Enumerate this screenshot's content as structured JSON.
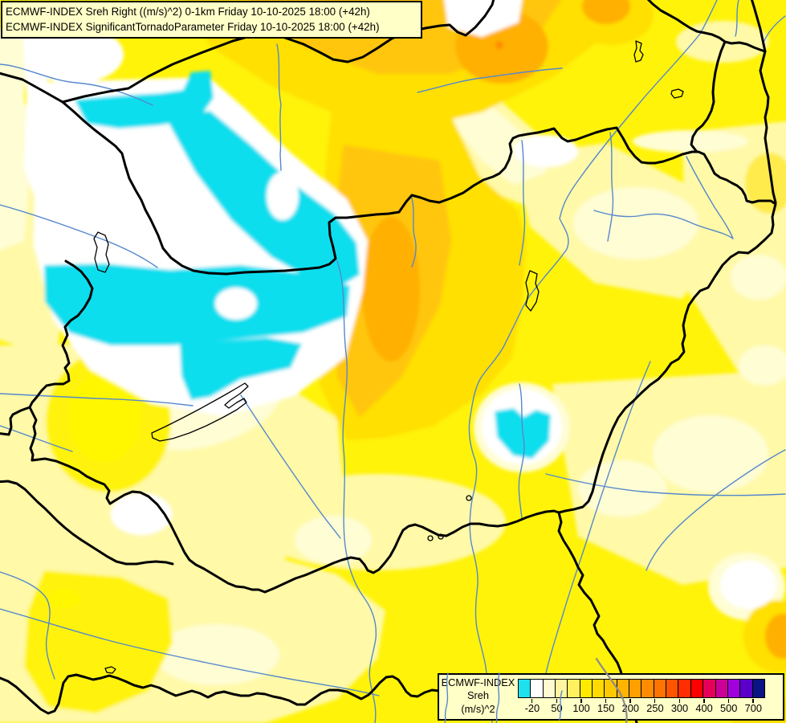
{
  "title": {
    "line1": "ECMWF-INDEX Sreh Right ((m/s)^2) 0-1km Friday 10-10-2025 18:00 (+42h)",
    "line2": "ECMWF-INDEX SignificantTornadoParameter Friday 10-10-2025 18:00 (+42h)"
  },
  "legend": {
    "source": "ECMWF-INDEX",
    "parameter": "Sreh",
    "units": "(m/s)^2",
    "cells": [
      "#1EE1EE",
      "#FFFFFF",
      "#FFFAD0",
      "#FFF5A0",
      "#FFF060",
      "#FFEA00",
      "#FFDA00",
      "#FFC800",
      "#FFB400",
      "#FFA000",
      "#FF8C00",
      "#FF7300",
      "#FF5500",
      "#FF2D00",
      "#FF0000",
      "#E6005A",
      "#CC0096",
      "#A000DC",
      "#5A00C8",
      "#0A1482"
    ],
    "ticks": [
      {
        "label": "-20",
        "boundary": 1
      },
      {
        "label": "50",
        "boundary": 3
      },
      {
        "label": "100",
        "boundary": 5
      },
      {
        "label": "150",
        "boundary": 7
      },
      {
        "label": "200",
        "boundary": 9
      },
      {
        "label": "250",
        "boundary": 11
      },
      {
        "label": "300",
        "boundary": 13
      },
      {
        "label": "400",
        "boundary": 15
      },
      {
        "label": "500",
        "boundary": 17
      },
      {
        "label": "700",
        "boundary": 19
      }
    ]
  },
  "map": {
    "description": "Filled contour map of storm-relative helicity over Hungary and surrounding countries",
    "palette": {
      "negative_cyan": "#0ADEEE",
      "white": "#FFFFFF",
      "cream": "#FFFDD4",
      "pale_yellow": "#FFF9A8",
      "yellow": "#FFF30A",
      "gold": "#FFE000",
      "amber": "#FFC60A",
      "orange": "#FFB000",
      "deep_orange": "#FF8C00",
      "border_line": "#000000",
      "river_line": "#5588CC",
      "gray_river_line": "#8C8C8C",
      "box_background": "#FFFFC8"
    }
  }
}
